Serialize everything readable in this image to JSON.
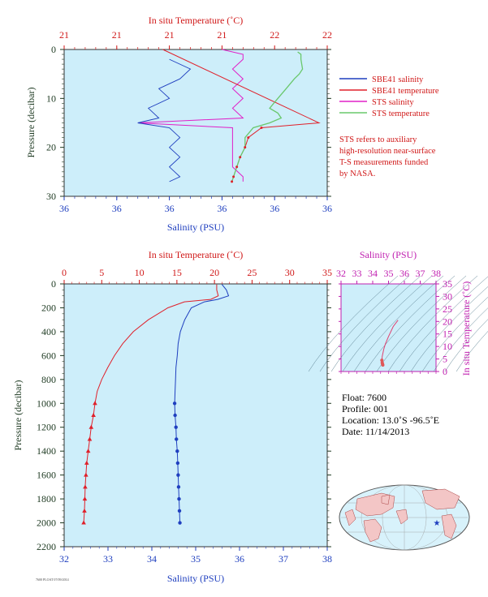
{
  "colors": {
    "panel_bg": "#cdeefa",
    "blue": "#1f3fbf",
    "red": "#e0202a",
    "magenta": "#e020c8",
    "green": "#69c86c",
    "dark": "#1e3a22",
    "axis_red": "#d01818",
    "axis_blue": "#1f3fbf",
    "axis_magenta": "#c020b0",
    "land": "#f3c6c6",
    "ocean": "#d8f2fb"
  },
  "top_chart": {
    "top_axis_label": "In situ Temperature (˚C)",
    "bottom_axis_label": "Salinity (PSU)",
    "y_axis_label": "Pressure (decibar)",
    "top_ticks": [
      "21",
      "21",
      "21",
      "21",
      "22",
      "22"
    ],
    "bottom_ticks": [
      "36",
      "36",
      "36",
      "36",
      "36",
      "36"
    ],
    "y_ticks": [
      "0",
      "10",
      "20",
      "30"
    ],
    "legend": [
      {
        "label": "SBE41 salinity",
        "color": "#1f3fbf"
      },
      {
        "label": "SBE41 temperature",
        "color": "#e0202a"
      },
      {
        "label": "STS salinity",
        "color": "#e020c8"
      },
      {
        "label": "STS temperature",
        "color": "#69c86c"
      }
    ],
    "note": [
      "STS refers to auxiliary",
      "high-resolution near-surface",
      "T-S measurements funded",
      "by NASA."
    ]
  },
  "main_chart": {
    "top_axis_label": "In situ Temperature (˚C)",
    "bottom_axis_label": "Salinity (PSU)",
    "y_axis_label": "Pressure (decibar)",
    "top_ticks": [
      "0",
      "5",
      "10",
      "15",
      "20",
      "25",
      "30",
      "35"
    ],
    "bottom_ticks": [
      "32",
      "33",
      "34",
      "35",
      "36",
      "37",
      "38"
    ],
    "y_ticks": [
      "0",
      "200",
      "400",
      "600",
      "800",
      "1000",
      "1200",
      "1400",
      "1600",
      "1800",
      "2000",
      "2200"
    ],
    "footer_id": "7600 PLOAT 07/09/2014"
  },
  "ts_chart": {
    "top_axis_label": "Salinity (PSU)",
    "right_axis_label": "In situ Temperature (˚C)",
    "top_ticks": [
      "32",
      "33",
      "34",
      "35",
      "36",
      "37",
      "38"
    ],
    "right_ticks": [
      "0",
      "5",
      "10",
      "15",
      "20",
      "25",
      "30",
      "35"
    ]
  },
  "info": {
    "float": "Float:  7600",
    "profile": "Profile:  001",
    "location": "Location:  13.0˚S  -96.5˚E",
    "date": "Date:  11/14/2013"
  },
  "chart_data": [
    {
      "type": "line",
      "title": "",
      "xlabel": "Salinity (PSU)",
      "x2label": "In situ Temperature (˚C)",
      "ylabel": "Pressure (decibar)",
      "ylim": [
        30,
        0
      ],
      "series": [
        {
          "name": "SBE41 salinity",
          "pressure": [
            2,
            4,
            6,
            8,
            10,
            12,
            14,
            15,
            16,
            18,
            20,
            22,
            24,
            26,
            27
          ],
          "salinity": [
            36.05,
            36.07,
            36.06,
            36.04,
            36.05,
            36.03,
            36.04,
            36.02,
            36.05,
            36.06,
            36.05,
            36.06,
            36.05,
            36.06,
            36.05
          ]
        },
        {
          "name": "SBE41 temperature",
          "pressure": [
            0,
            15,
            16,
            18,
            20,
            22,
            24,
            26,
            27
          ],
          "temperature": [
            21.0,
            21.95,
            21.6,
            21.52,
            21.5,
            21.47,
            21.45,
            21.43,
            21.42
          ]
        },
        {
          "name": "STS salinity",
          "pressure": [
            0,
            1,
            2,
            4,
            6,
            8,
            10,
            12,
            14,
            15,
            16,
            18,
            20,
            22,
            24,
            26,
            27
          ],
          "salinity": [
            36.1,
            36.12,
            36.12,
            36.11,
            36.12,
            36.11,
            36.12,
            36.11,
            36.12,
            36.02,
            36.11,
            36.11,
            36.11,
            36.11,
            36.11,
            36.12,
            36.12
          ]
        },
        {
          "name": "STS temperature",
          "pressure": [
            0.5,
            1,
            2,
            4,
            5,
            6,
            8,
            10,
            12,
            13,
            14,
            15,
            16,
            18,
            20,
            22,
            24,
            26,
            27
          ],
          "temperature": [
            21.82,
            21.84,
            21.84,
            21.85,
            21.83,
            21.8,
            21.75,
            21.7,
            21.65,
            21.7,
            21.72,
            21.65,
            21.55,
            21.5,
            21.5,
            21.47,
            21.45,
            21.43,
            21.42
          ]
        }
      ]
    },
    {
      "type": "line",
      "title": "",
      "xlabel": "Salinity (PSU)",
      "x2label": "In situ Temperature (˚C)",
      "ylabel": "Pressure (decibar)",
      "ylim": [
        2200,
        0
      ],
      "xlim": [
        32,
        38
      ],
      "x2lim": [
        0,
        35
      ],
      "series": [
        {
          "name": "Salinity",
          "pressure": [
            5,
            50,
            100,
            130,
            150,
            200,
            300,
            400,
            500,
            600,
            700,
            800,
            900,
            1000,
            1100,
            1200,
            1300,
            1400,
            1500,
            1600,
            1700,
            1800,
            1900,
            2000
          ],
          "values": [
            35.6,
            35.7,
            35.75,
            35.5,
            35.2,
            34.9,
            34.75,
            34.65,
            34.6,
            34.58,
            34.55,
            34.54,
            34.53,
            34.52,
            34.53,
            34.55,
            34.56,
            34.58,
            34.59,
            34.6,
            34.61,
            34.62,
            34.63,
            34.64
          ]
        },
        {
          "name": "Temperature",
          "pressure": [
            5,
            50,
            100,
            130,
            150,
            200,
            300,
            400,
            500,
            600,
            700,
            800,
            900,
            1000,
            1100,
            1200,
            1300,
            1400,
            1500,
            1600,
            1700,
            1800,
            1900,
            2000
          ],
          "values": [
            20.3,
            20.3,
            20.5,
            19.5,
            16.0,
            13.8,
            11.2,
            9.2,
            7.8,
            6.7,
            5.8,
            5.0,
            4.4,
            4.1,
            3.9,
            3.6,
            3.4,
            3.2,
            3.0,
            2.9,
            2.8,
            2.75,
            2.7,
            2.6
          ]
        }
      ]
    },
    {
      "type": "scatter",
      "title": "",
      "xlabel": "Salinity (PSU)",
      "ylabel": "In situ Temperature (˚C)",
      "xlim": [
        32,
        38
      ],
      "ylim": [
        0,
        35
      ],
      "series": [
        {
          "name": "T-S",
          "salinity": [
            35.6,
            35.3,
            35.0,
            34.8,
            34.7,
            34.65,
            34.6,
            34.58,
            34.6,
            34.62,
            34.64
          ],
          "temperature": [
            20.5,
            18.0,
            14.0,
            11.0,
            9.0,
            7.5,
            6.0,
            4.5,
            3.5,
            3.0,
            2.6
          ]
        }
      ]
    }
  ]
}
